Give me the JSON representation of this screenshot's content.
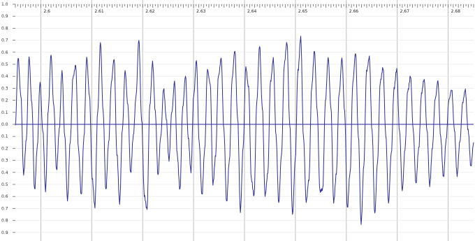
{
  "timeline": {
    "ticks": [
      "2.6",
      "2.61",
      "2.62",
      "2.63",
      "2.64",
      "2.65",
      "2.66",
      "2.67",
      "2.68"
    ]
  },
  "amplitude_axis": {
    "labels": [
      "1.0",
      "0.9",
      "0.8",
      "0.7",
      "0.6",
      "0.5",
      "0.4",
      "0.3",
      "0.2",
      "0.1",
      "0.0",
      "0.1",
      "0.2",
      "0.3",
      "0.4",
      "0.5",
      "0.6",
      "0.7",
      "0.8",
      "0.9",
      "1.0"
    ]
  },
  "waveform": {
    "color": "#2f2f8f",
    "center_line_color": "#2323a0",
    "grid_color": "#bfbfbf"
  },
  "chart_data": {
    "type": "line",
    "xlim": [
      2.595,
      2.685
    ],
    "ylim": [
      -1.0,
      1.0
    ],
    "series": [
      {
        "values": [
          0.0,
          0.55,
          0.25,
          -0.42,
          -0.12,
          0.55,
          0.18,
          -0.55,
          -0.18,
          0.35,
          -0.05,
          -0.55,
          0.12,
          0.58,
          0.15,
          -0.38,
          -0.05,
          0.45,
          -0.1,
          -0.62,
          -0.15,
          0.4,
          0.48,
          -0.2,
          -0.6,
          -0.1,
          0.55,
          0.25,
          -0.45,
          -0.68,
          0.1,
          0.68,
          0.1,
          -0.55,
          -0.15,
          0.35,
          0.55,
          -0.25,
          -0.65,
          -0.05,
          0.45,
          0.15,
          -0.4,
          -0.1,
          0.25,
          0.7,
          0.05,
          -0.6,
          -0.7,
          0.15,
          0.52,
          0.1,
          -0.42,
          -0.1,
          0.3,
          0.05,
          -0.3,
          0.1,
          0.35,
          -0.25,
          -0.55,
          0.15,
          0.4,
          -0.1,
          -0.4,
          0.25,
          0.52,
          -0.15,
          -0.6,
          -0.2,
          0.45,
          0.35,
          -0.5,
          -0.25,
          0.4,
          0.55,
          -0.05,
          -0.65,
          -0.3,
          0.38,
          0.62,
          0.05,
          -0.72,
          -0.2,
          0.48,
          0.3,
          -0.45,
          -0.6,
          0.2,
          0.65,
          0.15,
          -0.6,
          -0.4,
          0.35,
          0.55,
          -0.1,
          -0.65,
          -0.25,
          0.5,
          0.68,
          0.0,
          -0.75,
          -0.3,
          0.45,
          0.72,
          -0.1,
          -0.65,
          -0.45,
          0.3,
          0.62,
          0.1,
          -0.55,
          -0.55,
          0.2,
          0.55,
          0.15,
          -0.65,
          -0.4,
          0.25,
          0.55,
          0.1,
          -0.7,
          -0.4,
          0.35,
          0.6,
          -0.1,
          -0.82,
          -0.35,
          0.45,
          0.55,
          -0.05,
          -0.75,
          -0.3,
          0.35,
          0.48,
          -0.1,
          -0.65,
          -0.25,
          0.3,
          0.45,
          -0.05,
          -0.55,
          -0.2,
          0.28,
          0.4,
          -0.05,
          -0.5,
          -0.2,
          0.25,
          0.38,
          -0.05,
          -0.5,
          -0.2,
          0.22,
          0.35,
          -0.1,
          -0.45,
          -0.12,
          0.2,
          0.3,
          -0.05,
          -0.42,
          -0.15,
          0.18,
          0.28,
          -0.05,
          -0.35,
          -0.15
        ]
      }
    ]
  }
}
